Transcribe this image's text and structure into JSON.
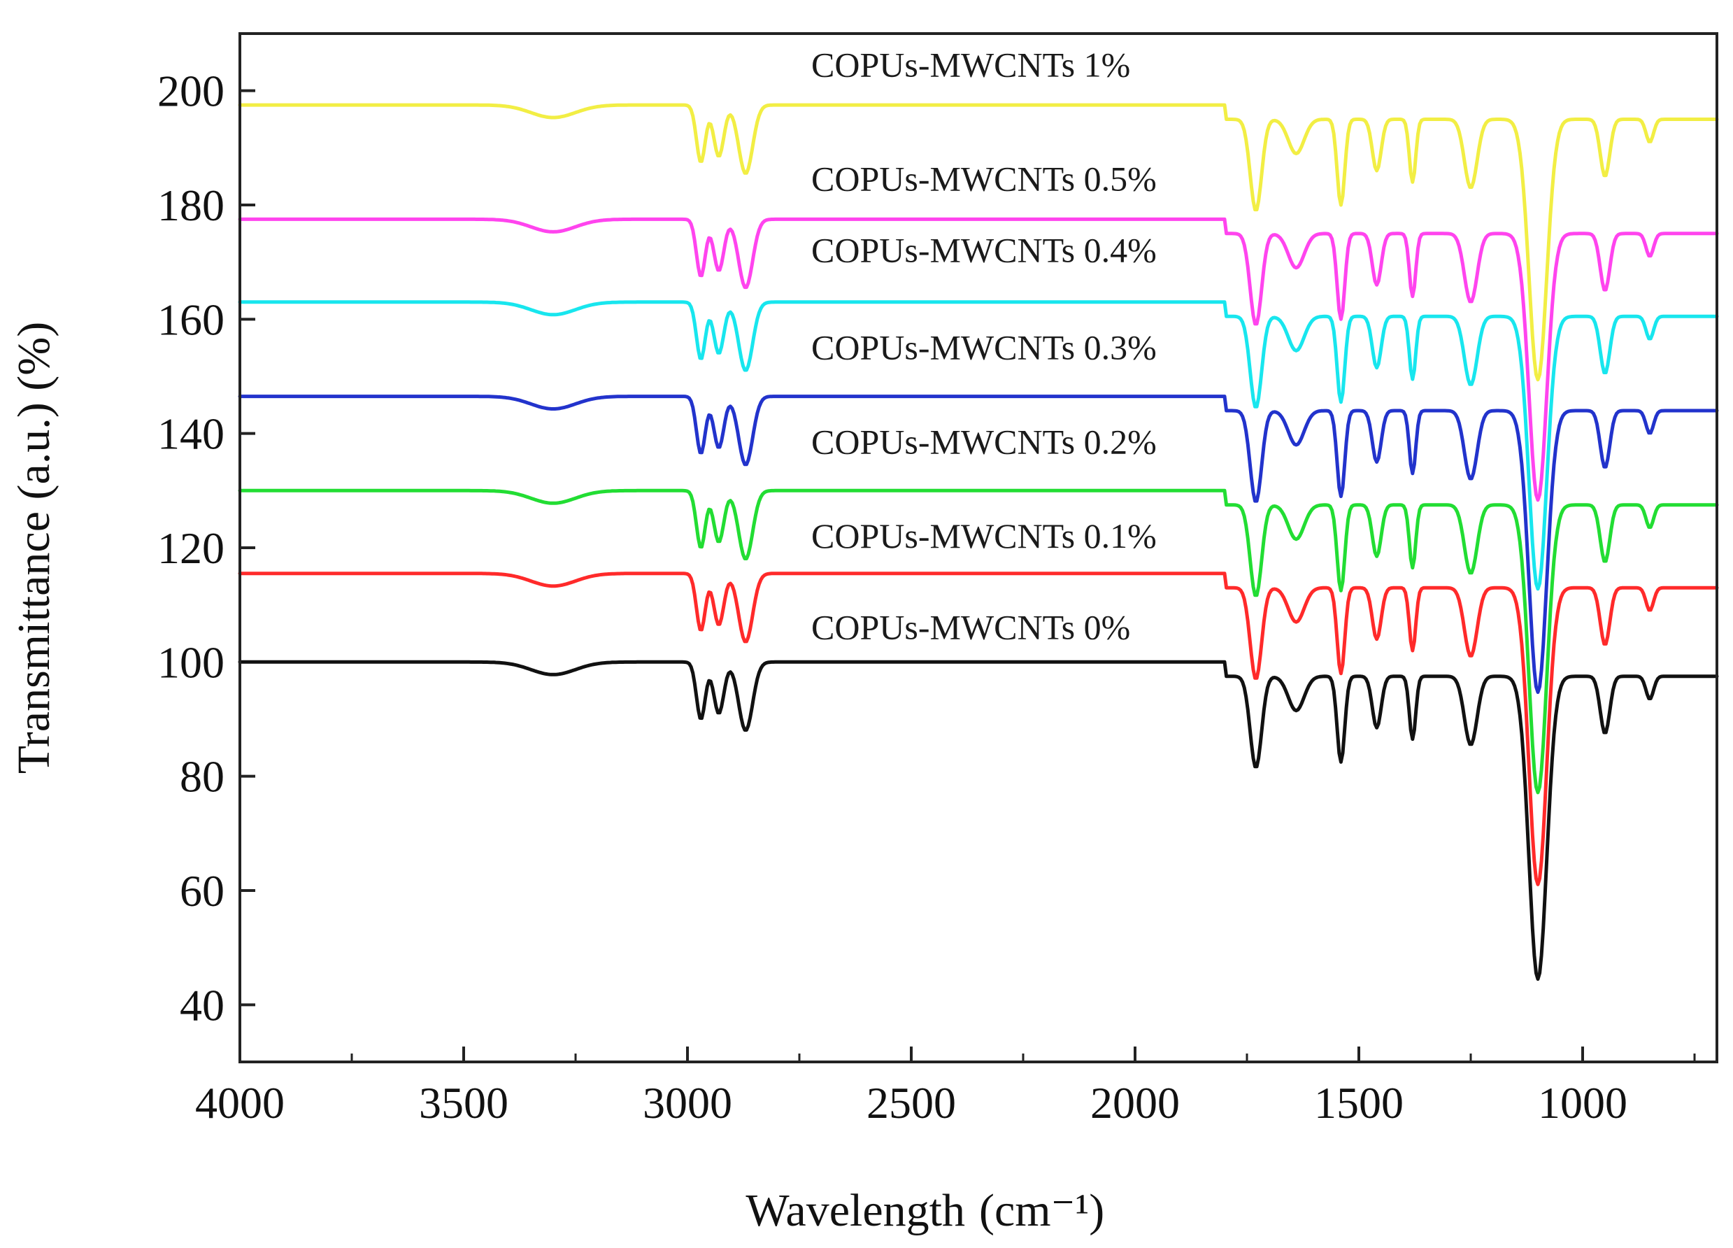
{
  "chart_data": {
    "type": "line",
    "title": "",
    "xlabel": "Wavelength",
    "xlabel_unit": "(cm⁻¹)",
    "ylabel": "Transmittance (a.u.) (%)",
    "xlim": [
      4000,
      700
    ],
    "ylim": [
      30,
      210
    ],
    "x_reversed": true,
    "xticks": [
      4000,
      3500,
      3000,
      2500,
      2000,
      1500,
      1000
    ],
    "yticks": [
      40,
      60,
      80,
      100,
      120,
      140,
      160,
      180,
      200
    ],
    "grid": false,
    "legend": "inline labels above each curve",
    "series": [
      {
        "name": "COPUs-MWCNTs 0%",
        "color": "#111111",
        "offset": 100,
        "label_y": 104,
        "peak_scale": 1.0
      },
      {
        "name": "COPUs-MWCNTs 0.1%",
        "color": "#ff2a2a",
        "offset": 115.5,
        "label_y": 120,
        "peak_scale": 0.98
      },
      {
        "name": "COPUs-MWCNTs 0.2%",
        "color": "#22dd33",
        "offset": 130,
        "label_y": 136.5,
        "peak_scale": 0.95
      },
      {
        "name": "COPUs-MWCNTs 0.3%",
        "color": "#2233cc",
        "offset": 146.5,
        "label_y": 153,
        "peak_scale": 0.93
      },
      {
        "name": "COPUs-MWCNTs 0.4%",
        "color": "#18e6ee",
        "offset": 163,
        "label_y": 170,
        "peak_scale": 0.9
      },
      {
        "name": "COPUs-MWCNTs 0.5%",
        "color": "#ff44ee",
        "offset": 177.5,
        "label_y": 182.5,
        "peak_scale": 0.88
      },
      {
        "name": "COPUs-MWCNTs 1%",
        "color": "#f2ee44",
        "offset": 197.5,
        "label_y": 202.5,
        "peak_scale": 0.86
      }
    ],
    "absorption_bands": [
      {
        "x": 3300,
        "depth": 2.2,
        "width": 70
      },
      {
        "x": 2970,
        "depth": 10,
        "width": 14
      },
      {
        "x": 2930,
        "depth": 9,
        "width": 16
      },
      {
        "x": 2870,
        "depth": 12,
        "width": 22
      },
      {
        "x": 1730,
        "depth": 16,
        "width": 18
      },
      {
        "x": 1640,
        "depth": 6,
        "width": 25
      },
      {
        "x": 1540,
        "depth": 15,
        "width": 12
      },
      {
        "x": 1460,
        "depth": 9,
        "width": 14
      },
      {
        "x": 1380,
        "depth": 11,
        "width": 10
      },
      {
        "x": 1250,
        "depth": 12,
        "width": 20
      },
      {
        "x": 1100,
        "depth": 53,
        "width": 28
      },
      {
        "x": 950,
        "depth": 10,
        "width": 15
      },
      {
        "x": 850,
        "depth": 4,
        "width": 12
      }
    ]
  }
}
